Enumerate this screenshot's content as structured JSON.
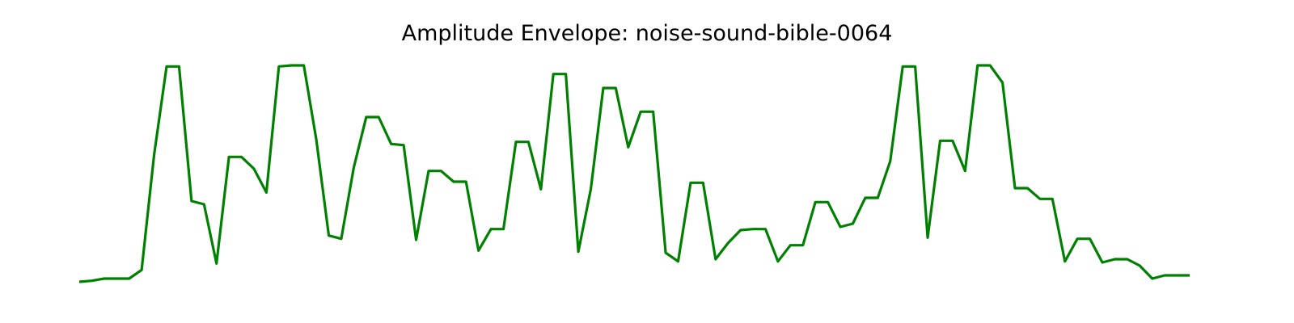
{
  "chart_data": {
    "type": "line",
    "title": "Amplitude Envelope: noise-sound-bible-0064",
    "xlabel": "",
    "ylabel": "",
    "grid": false,
    "axes_visible": false,
    "line_color": "#008000",
    "x": [
      0,
      1,
      2,
      3,
      4,
      5,
      6,
      7,
      8,
      9,
      10,
      11,
      12,
      13,
      14,
      15,
      16,
      17,
      18,
      19,
      20,
      21,
      22,
      23,
      24,
      25,
      26,
      27,
      28,
      29,
      30,
      31,
      32,
      33,
      34,
      35,
      36,
      37,
      38,
      39,
      40,
      41,
      42,
      43,
      44,
      45,
      46,
      47,
      48,
      49,
      50,
      51,
      52,
      53,
      54,
      55,
      56,
      57,
      58,
      59,
      60,
      61,
      62,
      63,
      64,
      65,
      66,
      67,
      68,
      69,
      70,
      71,
      72,
      73,
      74,
      75,
      76,
      77,
      78,
      79,
      80,
      81,
      82,
      83,
      84,
      85,
      86,
      87,
      88,
      89
    ],
    "values": [
      0.0,
      0.005,
      0.015,
      0.015,
      0.015,
      0.055,
      0.59,
      1.0,
      1.0,
      0.375,
      0.36,
      0.085,
      0.58,
      0.58,
      0.525,
      0.415,
      1.0,
      1.005,
      1.005,
      0.66,
      0.215,
      0.2,
      0.53,
      0.765,
      0.765,
      0.64,
      0.635,
      0.195,
      0.515,
      0.515,
      0.465,
      0.465,
      0.145,
      0.245,
      0.245,
      0.65,
      0.65,
      0.43,
      0.965,
      0.965,
      0.14,
      0.43,
      0.9,
      0.9,
      0.625,
      0.79,
      0.79,
      0.135,
      0.095,
      0.46,
      0.46,
      0.105,
      0.18,
      0.24,
      0.245,
      0.245,
      0.095,
      0.17,
      0.17,
      0.37,
      0.37,
      0.255,
      0.27,
      0.39,
      0.39,
      0.56,
      1.0,
      1.0,
      0.205,
      0.655,
      0.655,
      0.515,
      1.005,
      1.005,
      0.925,
      0.435,
      0.435,
      0.385,
      0.385,
      0.095,
      0.2,
      0.2,
      0.09,
      0.105,
      0.105,
      0.075,
      0.015,
      0.03,
      0.03,
      0.03
    ],
    "xlim": [
      0,
      89
    ],
    "ylim": [
      0,
      1.005
    ]
  }
}
